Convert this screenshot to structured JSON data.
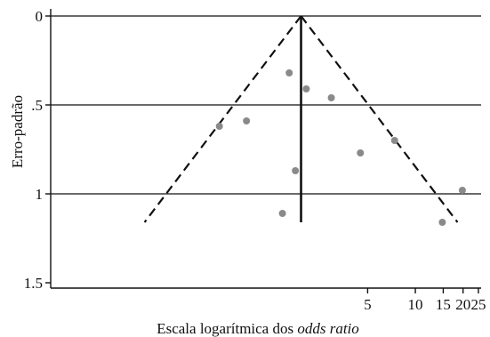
{
  "chart_data": {
    "type": "scatter",
    "title": "",
    "xlabel_prefix": "Escala logarítmica dos ",
    "xlabel_italic": "odds ratio",
    "ylabel": "Erro-padrão",
    "x_scale": "log",
    "y_inverted": true,
    "xlim": [
      0.05,
      26
    ],
    "ylim": [
      0,
      1.5
    ],
    "x_ticks": [
      {
        "value": 5,
        "label": "5"
      },
      {
        "value": 10,
        "label": "10"
      },
      {
        "value": 15,
        "label": "15"
      },
      {
        "value": 20,
        "label": "20"
      },
      {
        "value": 25,
        "label": "25"
      }
    ],
    "y_ticks": [
      {
        "value": 0,
        "label": "0"
      },
      {
        "value": 0.5,
        "label": ".5"
      },
      {
        "value": 1,
        "label": "1"
      },
      {
        "value": 1.5,
        "label": "1.5"
      }
    ],
    "gridlines_y": [
      0,
      0.5,
      1
    ],
    "pooled_estimate": 1.9,
    "funnel_se_max": 1.16,
    "points": [
      {
        "x": 0.58,
        "y": 0.62
      },
      {
        "x": 0.86,
        "y": 0.59
      },
      {
        "x": 1.6,
        "y": 0.32
      },
      {
        "x": 2.05,
        "y": 0.41
      },
      {
        "x": 2.95,
        "y": 0.46
      },
      {
        "x": 1.75,
        "y": 0.87
      },
      {
        "x": 1.45,
        "y": 1.11
      },
      {
        "x": 4.5,
        "y": 0.77
      },
      {
        "x": 7.4,
        "y": 0.7
      },
      {
        "x": 14.8,
        "y": 1.16
      },
      {
        "x": 19.8,
        "y": 0.98
      }
    ],
    "colors": {
      "points": "#8a8a8a",
      "lines": "#111111"
    }
  }
}
